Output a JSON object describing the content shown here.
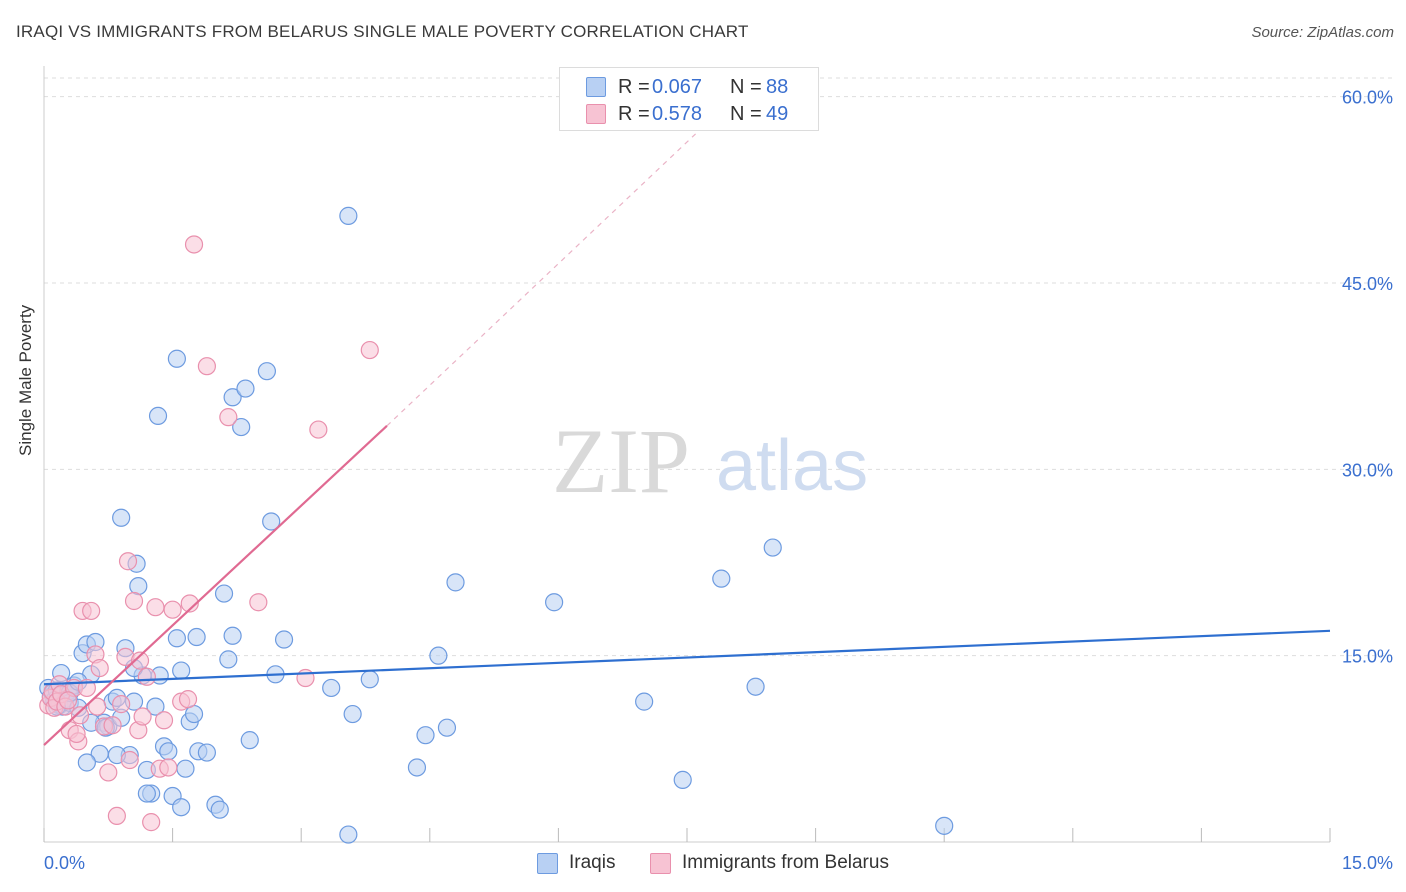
{
  "header": {
    "title": "IRAQI VS IMMIGRANTS FROM BELARUS SINGLE MALE POVERTY CORRELATION CHART",
    "source": "Source: ZipAtlas.com"
  },
  "watermark": {
    "zip": "ZIP",
    "atlas": "atlas"
  },
  "legend_top": {
    "rows": [
      {
        "r_label": "R =",
        "r_value": "0.067",
        "n_label": "N =",
        "n_value": "88"
      },
      {
        "r_label": "R =",
        "r_value": "0.578",
        "n_label": "N =",
        "n_value": "49"
      }
    ]
  },
  "legend_bottom": {
    "items": [
      {
        "label": "Iraqis"
      },
      {
        "label": "Immigrants from Belarus"
      }
    ]
  },
  "colors": {
    "iraqis_fill": "#b8d0f3",
    "iraqis_stroke": "#6d9be0",
    "iraqis_line": "#2e6fd0",
    "belarus_fill": "#f7c3d3",
    "belarus_stroke": "#e990ad",
    "belarus_line": "#e06a92",
    "tick": "#3a6fcf",
    "grid": "#dddddd"
  },
  "chart_data": {
    "type": "scatter",
    "title": "IRAQI VS IMMIGRANTS FROM BELARUS SINGLE MALE POVERTY CORRELATION CHART",
    "xlabel": "",
    "ylabel": "Single Male Poverty",
    "xlim": [
      0,
      15
    ],
    "ylim": [
      0,
      61.5
    ],
    "x_tick_labels": [
      "0.0%",
      "15.0%"
    ],
    "y_ticks": [
      15,
      30,
      45,
      60
    ],
    "y_tick_labels": [
      "15.0%",
      "30.0%",
      "45.0%",
      "60.0%"
    ],
    "grid": "horizontal dashed",
    "legend": "top-center and bottom",
    "series": [
      {
        "name": "Iraqis",
        "r": 0.067,
        "n": 88,
        "trend": {
          "x": [
            0,
            15
          ],
          "y": [
            12.7,
            17.0
          ]
        },
        "points": [
          [
            0.05,
            12.4
          ],
          [
            0.08,
            11.7
          ],
          [
            0.1,
            12.0
          ],
          [
            0.12,
            11.4
          ],
          [
            0.15,
            12.2
          ],
          [
            0.18,
            11.0
          ],
          [
            0.2,
            11.8
          ],
          [
            0.22,
            10.9
          ],
          [
            0.25,
            11.5
          ],
          [
            0.28,
            12.1
          ],
          [
            0.3,
            11.2
          ],
          [
            0.35,
            12.6
          ],
          [
            0.4,
            10.8
          ],
          [
            0.45,
            15.2
          ],
          [
            0.5,
            15.9
          ],
          [
            0.55,
            13.5
          ],
          [
            0.6,
            16.1
          ],
          [
            0.65,
            7.1
          ],
          [
            0.7,
            9.6
          ],
          [
            0.75,
            9.3
          ],
          [
            0.8,
            11.3
          ],
          [
            0.85,
            11.6
          ],
          [
            0.9,
            10.0
          ],
          [
            0.95,
            15.6
          ],
          [
            1.0,
            7.0
          ],
          [
            1.05,
            11.3
          ],
          [
            1.1,
            20.6
          ],
          [
            1.15,
            13.4
          ],
          [
            1.2,
            5.8
          ],
          [
            1.3,
            10.9
          ],
          [
            1.35,
            13.4
          ],
          [
            1.4,
            7.7
          ],
          [
            1.45,
            7.3
          ],
          [
            1.5,
            3.7
          ],
          [
            1.55,
            16.4
          ],
          [
            1.6,
            13.8
          ],
          [
            1.7,
            9.7
          ],
          [
            1.75,
            10.3
          ],
          [
            1.8,
            7.3
          ],
          [
            1.9,
            7.2
          ],
          [
            2.0,
            3.0
          ],
          [
            2.05,
            2.6
          ],
          [
            2.1,
            20.0
          ],
          [
            2.15,
            14.7
          ],
          [
            2.2,
            16.6
          ],
          [
            2.3,
            33.4
          ],
          [
            2.4,
            8.2
          ],
          [
            2.6,
            37.9
          ],
          [
            2.7,
            13.5
          ],
          [
            2.8,
            16.3
          ],
          [
            3.35,
            12.4
          ],
          [
            3.6,
            10.3
          ],
          [
            3.8,
            13.1
          ],
          [
            4.6,
            15.0
          ],
          [
            4.7,
            9.2
          ],
          [
            5.95,
            19.3
          ],
          [
            7.0,
            11.3
          ],
          [
            7.45,
            5.0
          ],
          [
            7.9,
            21.2
          ],
          [
            8.3,
            12.5
          ],
          [
            8.5,
            23.7
          ],
          [
            10.5,
            1.3
          ],
          [
            0.2,
            13.6
          ],
          [
            0.55,
            9.6
          ],
          [
            0.72,
            9.2
          ],
          [
            0.85,
            7.0
          ],
          [
            1.08,
            22.4
          ],
          [
            1.25,
            3.9
          ],
          [
            1.65,
            5.9
          ],
          [
            1.78,
            16.5
          ],
          [
            1.55,
            38.9
          ],
          [
            1.33,
            34.3
          ],
          [
            2.2,
            35.8
          ],
          [
            2.65,
            25.8
          ],
          [
            3.55,
            50.4
          ],
          [
            2.35,
            36.5
          ],
          [
            4.45,
            8.6
          ],
          [
            4.8,
            20.9
          ],
          [
            3.55,
            0.6
          ],
          [
            4.35,
            6.0
          ],
          [
            0.9,
            26.1
          ],
          [
            1.6,
            2.8
          ],
          [
            1.2,
            3.9
          ],
          [
            0.5,
            6.4
          ],
          [
            0.3,
            12.0
          ],
          [
            0.15,
            10.9
          ],
          [
            1.05,
            14.0
          ],
          [
            0.4,
            12.9
          ]
        ]
      },
      {
        "name": "Immigrants from Belarus",
        "r": 0.578,
        "n": 49,
        "trend": {
          "x": [
            0,
            4.0
          ],
          "y": [
            7.8,
            33.5
          ]
        },
        "trend_extension": {
          "x": [
            4.0,
            7.6
          ],
          "y": [
            33.5,
            57.0
          ]
        },
        "points": [
          [
            0.05,
            11.0
          ],
          [
            0.08,
            11.6
          ],
          [
            0.1,
            12.1
          ],
          [
            0.12,
            10.8
          ],
          [
            0.15,
            11.3
          ],
          [
            0.18,
            12.7
          ],
          [
            0.2,
            11.9
          ],
          [
            0.25,
            10.9
          ],
          [
            0.3,
            9.0
          ],
          [
            0.35,
            12.4
          ],
          [
            0.4,
            8.1
          ],
          [
            0.45,
            18.6
          ],
          [
            0.5,
            12.4
          ],
          [
            0.55,
            18.6
          ],
          [
            0.6,
            15.1
          ],
          [
            0.65,
            14.0
          ],
          [
            0.7,
            9.3
          ],
          [
            0.75,
            5.6
          ],
          [
            0.8,
            9.4
          ],
          [
            0.85,
            2.1
          ],
          [
            0.9,
            11.1
          ],
          [
            0.95,
            14.9
          ],
          [
            1.0,
            6.6
          ],
          [
            1.05,
            19.4
          ],
          [
            1.1,
            9.0
          ],
          [
            1.2,
            13.3
          ],
          [
            1.25,
            1.6
          ],
          [
            1.35,
            5.9
          ],
          [
            1.5,
            18.7
          ],
          [
            1.6,
            11.3
          ],
          [
            1.75,
            48.1
          ],
          [
            1.9,
            38.3
          ],
          [
            2.15,
            34.2
          ],
          [
            2.5,
            19.3
          ],
          [
            3.2,
            33.2
          ],
          [
            3.8,
            39.6
          ],
          [
            3.05,
            13.2
          ],
          [
            1.3,
            18.9
          ],
          [
            1.7,
            19.2
          ],
          [
            0.98,
            22.6
          ],
          [
            1.12,
            14.6
          ],
          [
            1.4,
            9.8
          ],
          [
            1.68,
            11.5
          ],
          [
            1.45,
            6.0
          ],
          [
            1.15,
            10.1
          ],
          [
            0.62,
            10.9
          ],
          [
            0.42,
            10.2
          ],
          [
            0.38,
            8.7
          ],
          [
            0.28,
            11.4
          ]
        ]
      }
    ]
  }
}
